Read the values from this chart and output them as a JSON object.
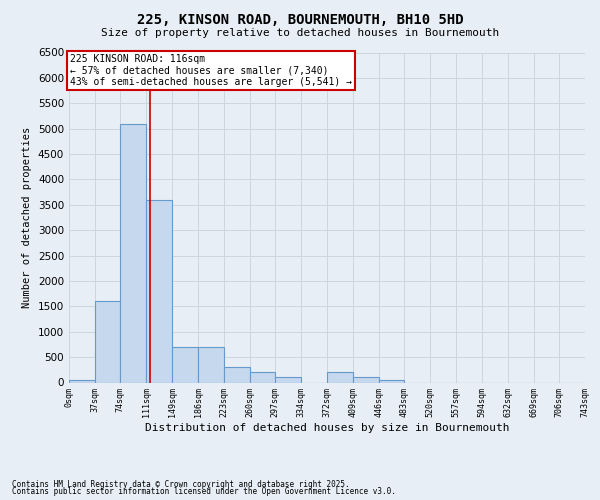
{
  "title": "225, KINSON ROAD, BOURNEMOUTH, BH10 5HD",
  "subtitle": "Size of property relative to detached houses in Bournemouth",
  "xlabel": "Distribution of detached houses by size in Bournemouth",
  "ylabel": "Number of detached properties",
  "footnote1": "Contains HM Land Registry data © Crown copyright and database right 2025.",
  "footnote2": "Contains public sector information licensed under the Open Government Licence v3.0.",
  "annotation_line1": "225 KINSON ROAD: 116sqm",
  "annotation_line2": "← 57% of detached houses are smaller (7,340)",
  "annotation_line3": "43% of semi-detached houses are larger (5,541) →",
  "property_size": 116,
  "bin_edges": [
    0,
    37,
    74,
    111,
    149,
    186,
    223,
    260,
    297,
    334,
    372,
    409,
    446,
    483,
    520,
    557,
    594,
    632,
    669,
    706,
    743
  ],
  "bar_heights": [
    50,
    1600,
    5100,
    3600,
    700,
    700,
    300,
    200,
    100,
    0,
    200,
    100,
    50,
    0,
    0,
    0,
    0,
    0,
    0,
    0
  ],
  "bar_color": "#c5d8ed",
  "bar_edge_color": "#6699cc",
  "grid_color": "#ccd5e0",
  "vline_color": "#cc0000",
  "ylim": [
    0,
    6500
  ],
  "yticks": [
    0,
    500,
    1000,
    1500,
    2000,
    2500,
    3000,
    3500,
    4000,
    4500,
    5000,
    5500,
    6000,
    6500
  ],
  "bg_color": "#e8eef5",
  "plot_bg_color": "#e8eef5",
  "title_fontsize": 10,
  "subtitle_fontsize": 8,
  "ylabel_fontsize": 7.5,
  "xlabel_fontsize": 8,
  "ytick_fontsize": 7.5,
  "xtick_fontsize": 6,
  "annot_fontsize": 7,
  "footnote_fontsize": 5.5
}
